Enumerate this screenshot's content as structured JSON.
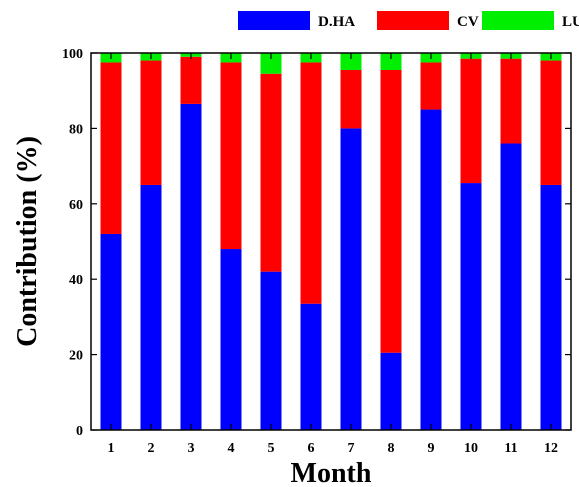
{
  "chart_data": {
    "type": "bar",
    "stacked": true,
    "title": "",
    "xlabel": "Month",
    "ylabel": "Contribution (%)",
    "ylim": [
      0,
      100
    ],
    "yticks": [
      0,
      20,
      40,
      60,
      80,
      100
    ],
    "categories": [
      "1",
      "2",
      "3",
      "4",
      "5",
      "6",
      "7",
      "8",
      "9",
      "10",
      "11",
      "12"
    ],
    "series": [
      {
        "name": "D.HA",
        "color": "#0000ff",
        "values": [
          52,
          65,
          86.5,
          48,
          42,
          33.5,
          80,
          20.5,
          85,
          65.5,
          76,
          65
        ]
      },
      {
        "name": "CV",
        "color": "#ff0000",
        "values": [
          45.5,
          33,
          12.5,
          49.5,
          52.5,
          64,
          15.5,
          75,
          12.5,
          33,
          22.5,
          33
        ]
      },
      {
        "name": "LU",
        "color": "#00ee00",
        "values": [
          2.5,
          2,
          1,
          2.5,
          5.5,
          2.5,
          4.5,
          4.5,
          2.5,
          1.5,
          1.5,
          2
        ]
      }
    ],
    "legend_position": "top",
    "grid": false
  }
}
